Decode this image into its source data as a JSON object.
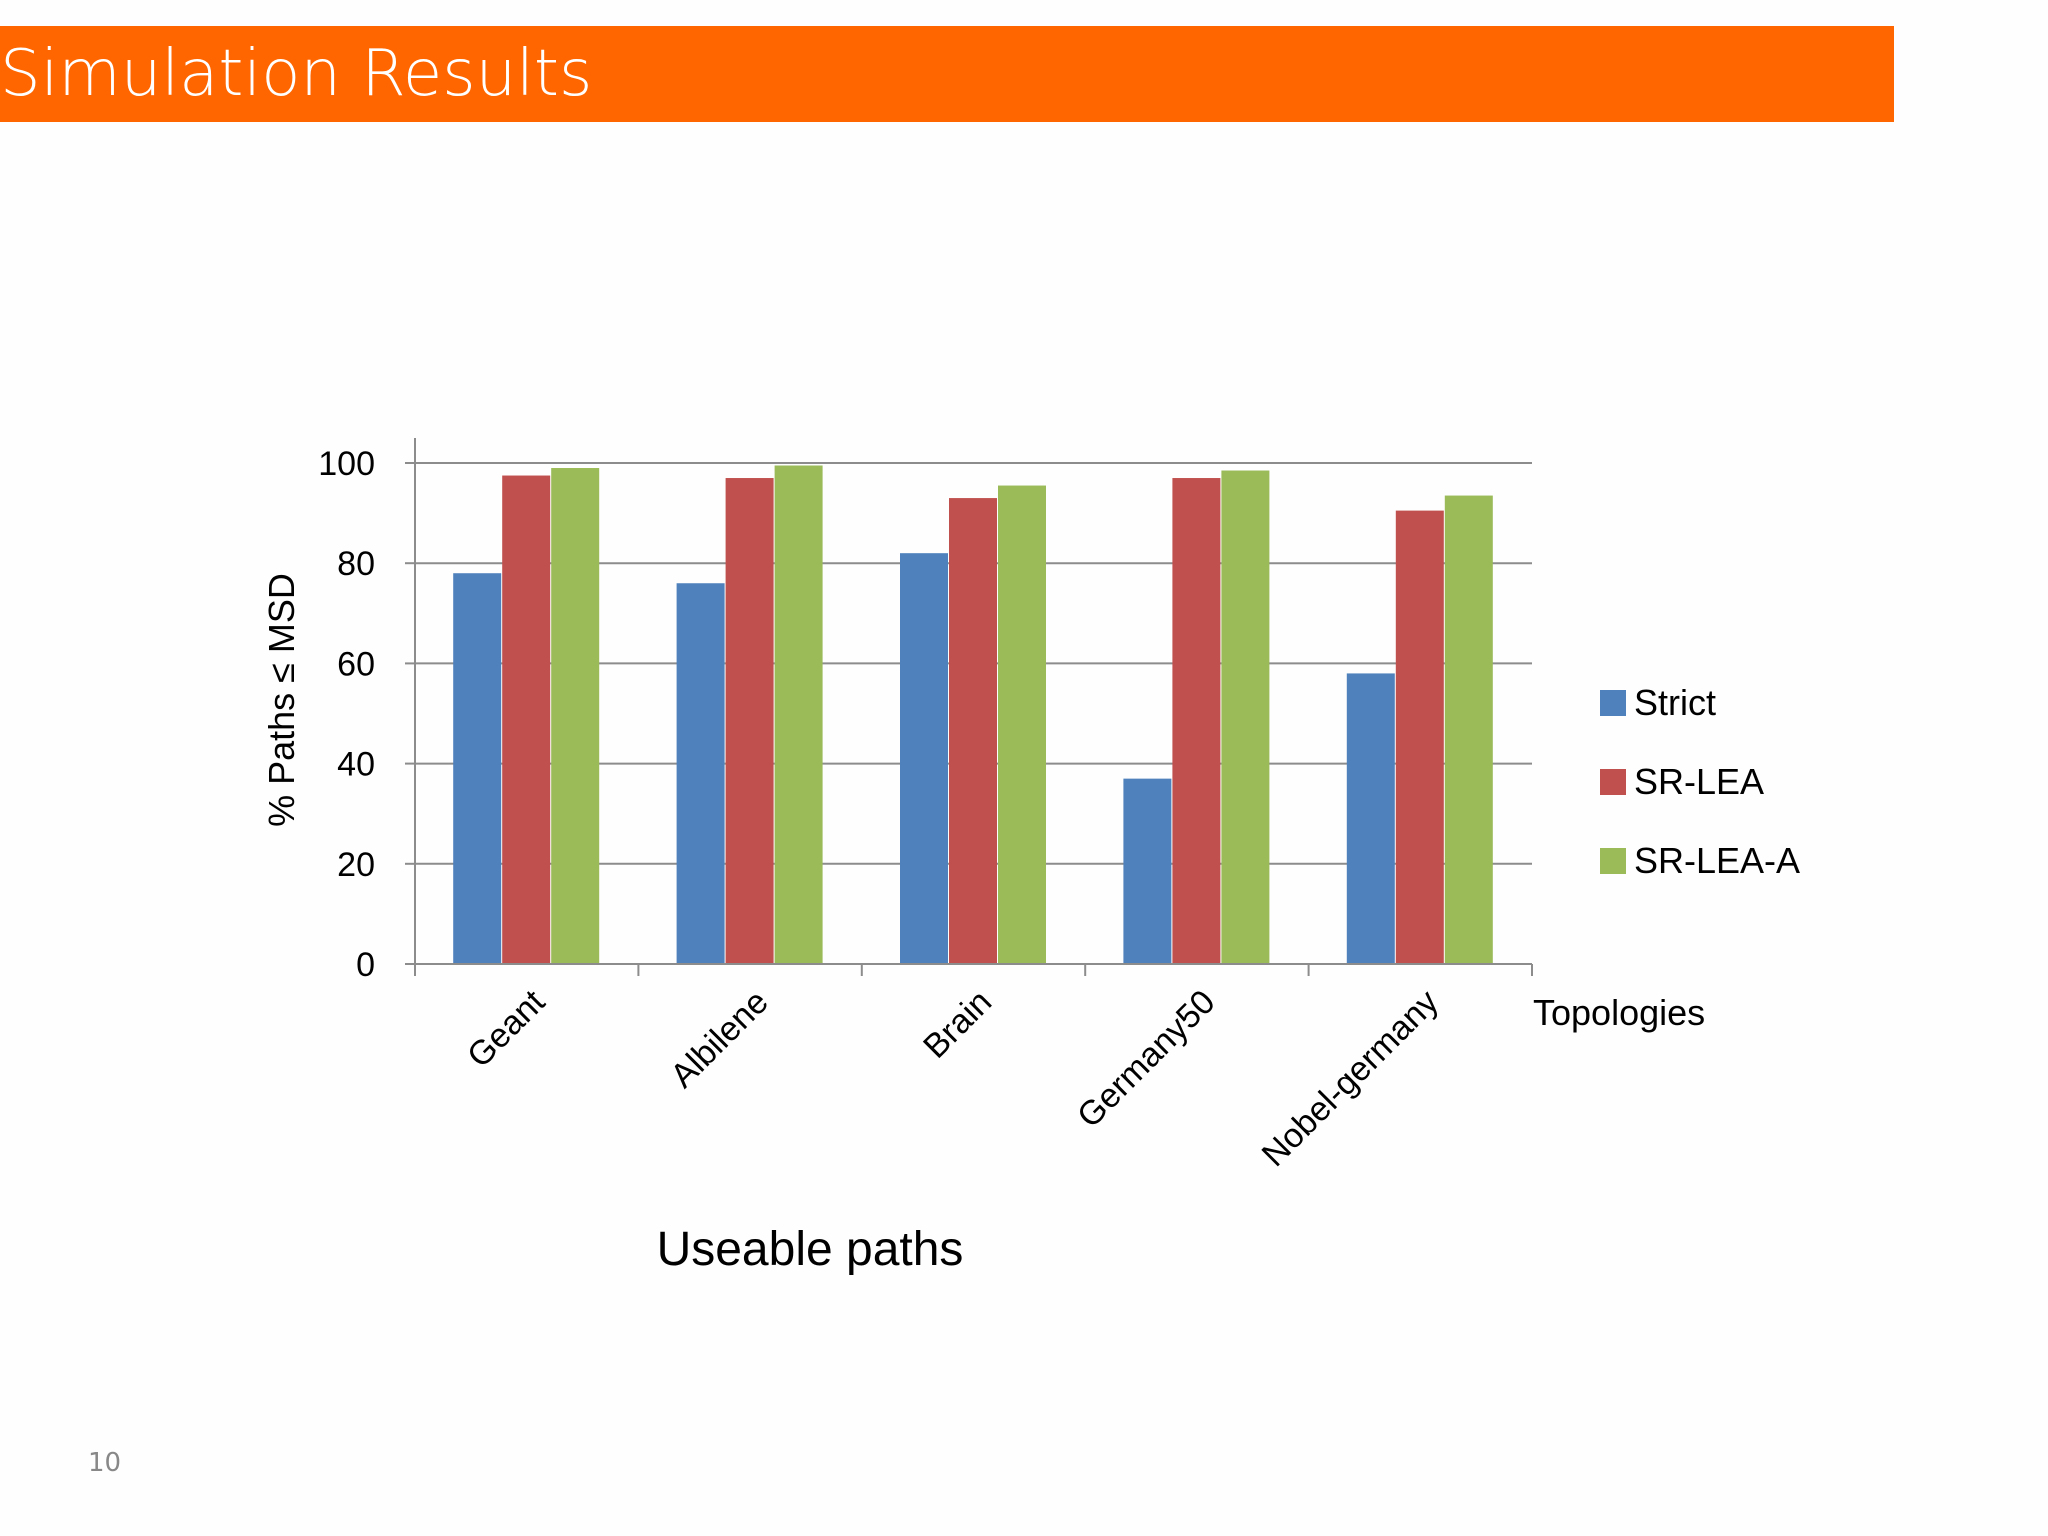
{
  "slide": {
    "title": "Simulation Results",
    "caption": "Useable paths",
    "page_number": "10"
  },
  "colors": {
    "title_bar": "#ff6600",
    "strict": "#4f81bd",
    "sr_lea": "#c0504d",
    "sr_lea_a": "#9bbb59",
    "gridline": "#8c8c8c"
  },
  "chart_data": {
    "type": "bar",
    "title": "",
    "xlabel": "Topologies",
    "ylabel": "% Paths ≤ MSD",
    "ylim": [
      0,
      100
    ],
    "yticks": [
      0,
      20,
      40,
      60,
      80,
      100
    ],
    "grid": true,
    "legend_position": "right",
    "categories": [
      "Geant",
      "Albilene",
      "Brain",
      "Germany50",
      "Nobel-germany"
    ],
    "series": [
      {
        "name": "Strict",
        "color": "#4f81bd",
        "values": [
          78,
          76,
          82,
          37,
          58
        ]
      },
      {
        "name": "SR-LEA",
        "color": "#c0504d",
        "values": [
          97.5,
          97,
          93,
          97,
          90.5
        ]
      },
      {
        "name": "SR-LEA-A",
        "color": "#9bbb59",
        "values": [
          99,
          99.5,
          95.5,
          98.5,
          93.5
        ]
      }
    ]
  }
}
